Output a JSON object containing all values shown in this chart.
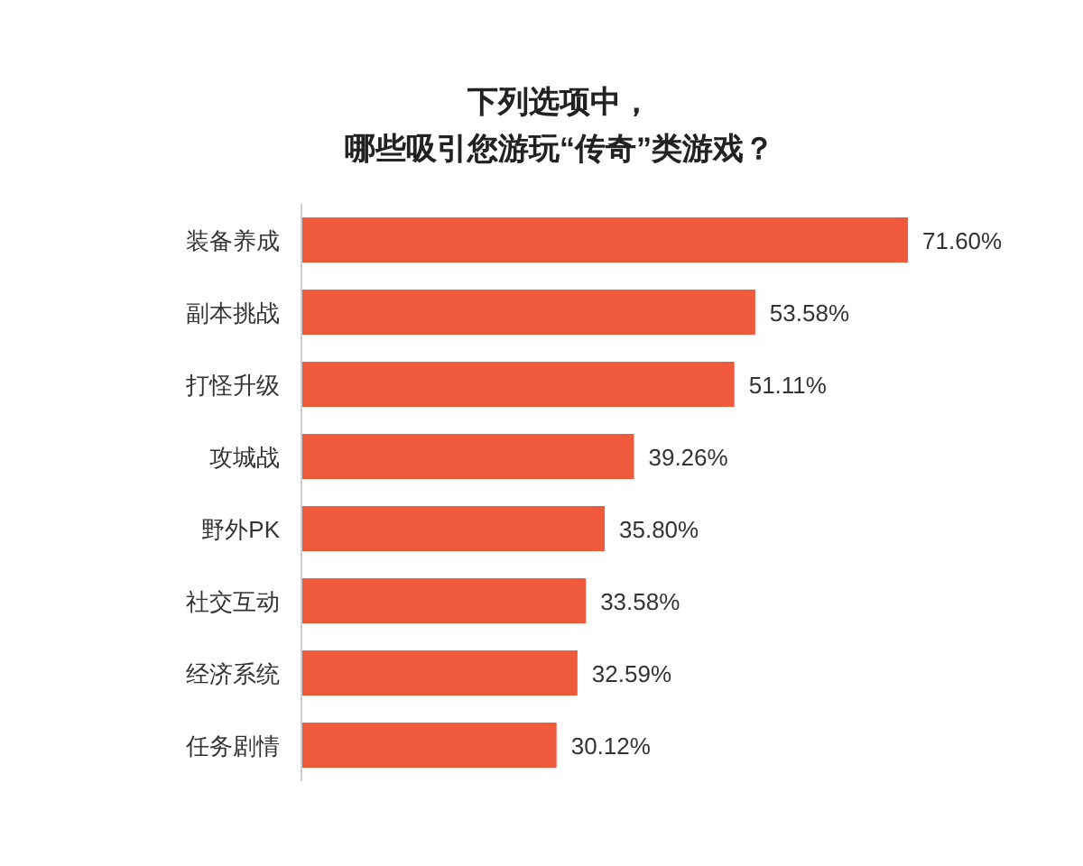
{
  "chart_data": {
    "type": "bar",
    "orientation": "horizontal",
    "title": "下列选项中，哪些吸引您游玩“传奇”类游戏？",
    "categories": [
      "装备养成",
      "副本挑战",
      "打怪升级",
      "攻城战",
      "野外PK",
      "社交互动",
      "经济系统",
      "任务剧情"
    ],
    "values": [
      71.6,
      53.58,
      51.11,
      39.26,
      35.8,
      33.58,
      32.59,
      30.12
    ],
    "value_labels": [
      "71.60%",
      "53.58%",
      "51.11%",
      "39.26%",
      "35.80%",
      "33.58%",
      "32.59%",
      "30.12%"
    ],
    "color": "#f05a3c"
  }
}
